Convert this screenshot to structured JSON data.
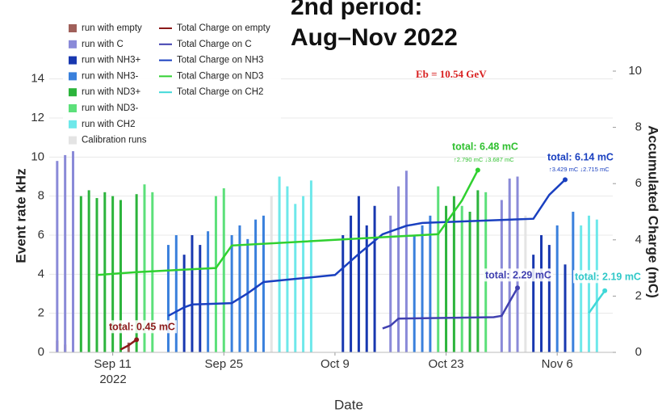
{
  "chart_data": {
    "type": "bar",
    "title_lines": [
      "2nd period:",
      "Aug–Nov 2022"
    ],
    "annotation_energy": "Eb = 10.54 GeV",
    "xlabel": "Date",
    "ylabel": "Event rate kHz",
    "y2label": "Accumulated Charge (mC)",
    "x_tick_year": "2022",
    "xlim": [
      "2022-09-03",
      "2022-11-13"
    ],
    "xticks": [
      {
        "value": "2022-09-11",
        "label": "Sep 11"
      },
      {
        "value": "2022-09-25",
        "label": "Sep 25"
      },
      {
        "value": "2022-10-09",
        "label": "Oct 9"
      },
      {
        "value": "2022-10-23",
        "label": "Oct 23"
      },
      {
        "value": "2022-11-06",
        "label": "Nov 6"
      }
    ],
    "ylim": [
      0,
      14.4
    ],
    "yticks": [
      0,
      2,
      4,
      6,
      8,
      10,
      12,
      14
    ],
    "y2lim": [
      0,
      10
    ],
    "y2ticks": [
      0,
      2,
      4,
      6,
      8,
      10
    ],
    "grid": true,
    "legend": "top-left",
    "series": [
      {
        "name": "run with empty",
        "color": "#a0605a",
        "mark": "bar",
        "x": [
          "2022-09-04",
          "2022-09-05",
          "2022-09-13"
        ],
        "values": [
          0.6,
          0.4,
          0.5
        ]
      },
      {
        "name": "run with C",
        "color": "#8a8ad8",
        "mark": "bar",
        "x": [
          "2022-09-04",
          "2022-09-05",
          "2022-09-06",
          "2022-10-16",
          "2022-10-17",
          "2022-10-18",
          "2022-10-30",
          "2022-10-31",
          "2022-11-01"
        ],
        "values": [
          9.8,
          10.1,
          10.3,
          7.0,
          8.5,
          9.3,
          7.8,
          8.9,
          9.0
        ]
      },
      {
        "name": "run with NH3+",
        "color": "#1838b0",
        "mark": "bar",
        "x": [
          "2022-09-20",
          "2022-09-21",
          "2022-09-22",
          "2022-10-10",
          "2022-10-11",
          "2022-10-12",
          "2022-10-13",
          "2022-10-14",
          "2022-11-03",
          "2022-11-04",
          "2022-11-05",
          "2022-11-07"
        ],
        "values": [
          5.0,
          6.0,
          5.5,
          6.0,
          7.0,
          8.0,
          6.5,
          7.5,
          5.0,
          6.0,
          5.5,
          4.5
        ]
      },
      {
        "name": "run with NH3-",
        "color": "#3a80dc",
        "mark": "bar",
        "x": [
          "2022-09-18",
          "2022-09-19",
          "2022-09-23",
          "2022-09-26",
          "2022-09-27",
          "2022-09-28",
          "2022-09-29",
          "2022-09-30",
          "2022-10-19",
          "2022-10-20",
          "2022-10-21",
          "2022-11-06",
          "2022-11-08"
        ],
        "values": [
          5.5,
          6.0,
          6.2,
          6.0,
          6.5,
          5.8,
          6.8,
          7.0,
          6.0,
          6.5,
          7.0,
          6.5,
          7.2
        ]
      },
      {
        "name": "run with ND3+",
        "color": "#2cb43c",
        "mark": "bar",
        "x": [
          "2022-09-07",
          "2022-09-08",
          "2022-09-09",
          "2022-09-10",
          "2022-09-11",
          "2022-09-12",
          "2022-09-14",
          "2022-10-23",
          "2022-10-24",
          "2022-10-26",
          "2022-10-27"
        ],
        "values": [
          8.0,
          8.3,
          7.9,
          8.2,
          8.0,
          7.8,
          8.1,
          7.5,
          8.0,
          7.2,
          8.3
        ]
      },
      {
        "name": "run with ND3-",
        "color": "#5ce07a",
        "mark": "bar",
        "x": [
          "2022-09-15",
          "2022-09-16",
          "2022-09-24",
          "2022-09-25",
          "2022-10-22",
          "2022-10-25",
          "2022-10-28"
        ],
        "values": [
          8.6,
          8.2,
          8.0,
          8.4,
          8.5,
          7.5,
          8.2
        ]
      },
      {
        "name": "run with CH2",
        "color": "#6ee8ea",
        "mark": "bar",
        "x": [
          "2022-10-02",
          "2022-10-03",
          "2022-10-04",
          "2022-10-05",
          "2022-10-06",
          "2022-11-09",
          "2022-11-10",
          "2022-11-11"
        ],
        "values": [
          9.0,
          8.5,
          7.6,
          8.0,
          8.8,
          6.5,
          7.0,
          6.8
        ]
      },
      {
        "name": "Calibration runs",
        "color": "#e4e4e4",
        "mark": "bar",
        "x": [
          "2022-10-01",
          "2022-11-02"
        ],
        "values": [
          8.0,
          7.0
        ]
      },
      {
        "name": "Total Charge on empty",
        "color": "#8b1a1a",
        "mark": "line",
        "axis": "y2",
        "x": [
          "2022-09-12",
          "2022-09-13",
          "2022-09-14"
        ],
        "values": [
          0.1,
          0.25,
          0.45
        ]
      },
      {
        "name": "Total Charge on C",
        "color": "#4040b0",
        "mark": "line",
        "axis": "y2",
        "x": [
          "2022-10-15",
          "2022-10-16",
          "2022-10-17",
          "2022-10-29",
          "2022-10-30",
          "2022-10-31",
          "2022-11-01"
        ],
        "values": [
          0.85,
          0.95,
          1.2,
          1.25,
          1.3,
          1.8,
          2.29
        ]
      },
      {
        "name": "Total Charge on NH3",
        "color": "#1a40c0",
        "mark": "line",
        "axis": "y2",
        "x": [
          "2022-09-18",
          "2022-09-20",
          "2022-09-21",
          "2022-09-26",
          "2022-09-28",
          "2022-09-30",
          "2022-10-09",
          "2022-10-12",
          "2022-10-15",
          "2022-10-18",
          "2022-10-20",
          "2022-11-03",
          "2022-11-05",
          "2022-11-07"
        ],
        "values": [
          1.3,
          1.6,
          1.7,
          1.75,
          2.1,
          2.5,
          2.75,
          3.5,
          4.2,
          4.5,
          4.6,
          4.75,
          5.6,
          6.14
        ]
      },
      {
        "name": "Total Charge on ND3",
        "color": "#30d030",
        "mark": "line",
        "axis": "y2",
        "x": [
          "2022-09-09",
          "2022-09-14",
          "2022-09-24",
          "2022-09-26",
          "2022-10-22",
          "2022-10-25",
          "2022-10-27"
        ],
        "values": [
          2.75,
          2.85,
          3.0,
          3.8,
          4.2,
          5.4,
          6.48
        ]
      },
      {
        "name": "Total Charge on CH2",
        "color": "#40d8d8",
        "mark": "line",
        "axis": "y2",
        "x": [
          "2022-11-10",
          "2022-11-11",
          "2022-11-12"
        ],
        "values": [
          1.4,
          1.8,
          2.19
        ]
      }
    ],
    "annotations": [
      {
        "text": "total: 0.45 mC",
        "color": "#8b1a1a"
      },
      {
        "text": "total: 6.48 mC",
        "sub": "↑2.790 mC ↓3.687 mC",
        "color": "#30c030"
      },
      {
        "text": "total: 6.14 mC",
        "sub": "↑3.429 mC ↓2.715 mC",
        "color": "#1a40c0"
      },
      {
        "text": "total: 2.29 mC",
        "color": "#4040b0"
      },
      {
        "text": "total: 2.19 mC",
        "color": "#30c8c8"
      }
    ]
  }
}
